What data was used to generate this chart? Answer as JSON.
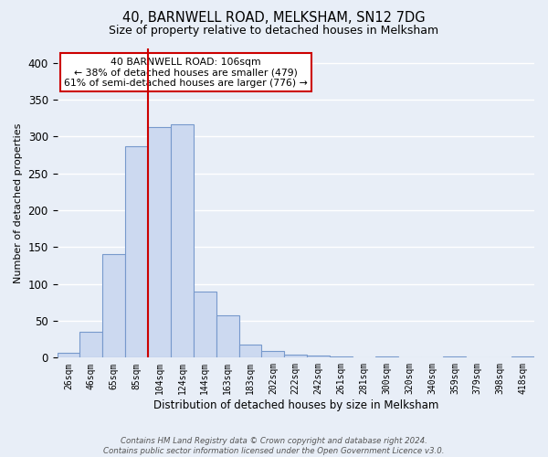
{
  "title": "40, BARNWELL ROAD, MELKSHAM, SN12 7DG",
  "subtitle": "Size of property relative to detached houses in Melksham",
  "xlabel": "Distribution of detached houses by size in Melksham",
  "ylabel": "Number of detached properties",
  "bar_labels": [
    "26sqm",
    "46sqm",
    "65sqm",
    "85sqm",
    "104sqm",
    "124sqm",
    "144sqm",
    "163sqm",
    "183sqm",
    "202sqm",
    "222sqm",
    "242sqm",
    "261sqm",
    "281sqm",
    "300sqm",
    "320sqm",
    "340sqm",
    "359sqm",
    "379sqm",
    "398sqm",
    "418sqm"
  ],
  "bar_values": [
    6,
    35,
    140,
    287,
    313,
    317,
    90,
    57,
    18,
    9,
    4,
    3,
    2,
    0,
    2,
    0,
    0,
    2,
    0,
    0,
    2
  ],
  "bar_color": "#ccd9f0",
  "bar_edge_color": "#7799cc",
  "vline_color": "#cc0000",
  "vline_x_index": 4,
  "annotation_title": "40 BARNWELL ROAD: 106sqm",
  "annotation_line1": "← 38% of detached houses are smaller (479)",
  "annotation_line2": "61% of semi-detached houses are larger (776) →",
  "annotation_box_color": "#ffffff",
  "annotation_box_edge": "#cc0000",
  "ylim": [
    0,
    420
  ],
  "yticks": [
    0,
    50,
    100,
    150,
    200,
    250,
    300,
    350,
    400
  ],
  "bg_color": "#e8eef7",
  "grid_color": "#ffffff",
  "footnote": "Contains HM Land Registry data © Crown copyright and database right 2024.\nContains public sector information licensed under the Open Government Licence v3.0."
}
